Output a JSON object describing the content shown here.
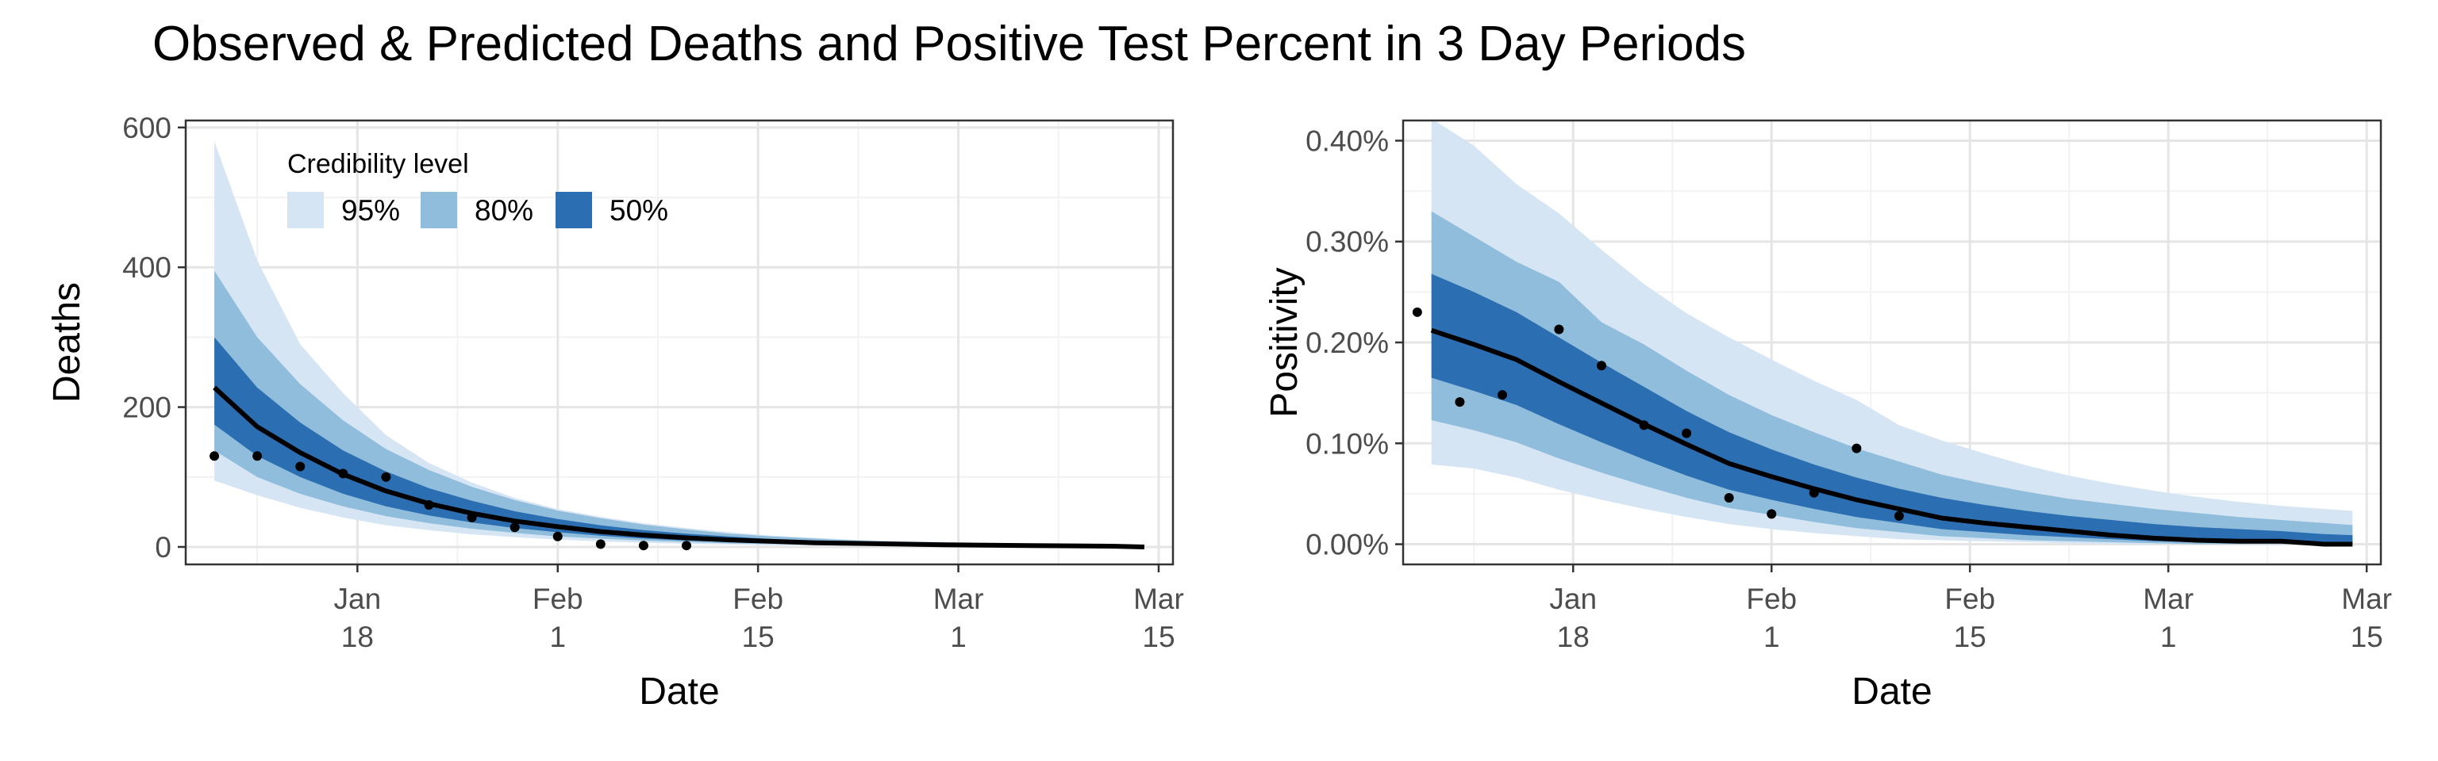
{
  "title": "Observed & Predicted Deaths and Positive Test Percent in 3 Day Periods",
  "legend": {
    "title": "Credibility level",
    "items": [
      {
        "label": "95%",
        "color": "#d6e5f4"
      },
      {
        "label": "80%",
        "color": "#8fbddb"
      },
      {
        "label": "50%",
        "color": "#2b6fb2"
      }
    ]
  },
  "colors": {
    "median_line": "#000000",
    "points": "#000000",
    "grid_major": "#e5e5e5",
    "grid_minor": "#f2f2f2",
    "panel_border": "#333333"
  },
  "x_ticks": [
    {
      "date": "2021-01-18",
      "line1": "Jan",
      "line2": "18"
    },
    {
      "date": "2021-02-01",
      "line1": "Feb",
      "line2": "1"
    },
    {
      "date": "2021-02-15",
      "line1": "Feb",
      "line2": "15"
    },
    {
      "date": "2021-03-01",
      "line1": "Mar",
      "line2": "1"
    },
    {
      "date": "2021-03-15",
      "line1": "Mar",
      "line2": "15"
    }
  ],
  "chart_data": [
    {
      "type": "area",
      "xlabel": "Date",
      "ylabel": "Deaths",
      "xlim": [
        "2021-01-06",
        "2021-03-16"
      ],
      "ylim": [
        -25,
        610
      ],
      "yticks": [
        0,
        200,
        400,
        600
      ],
      "ytick_labels": [
        "0",
        "200",
        "400",
        "600"
      ],
      "grid": true,
      "legend_placement": "top-left",
      "x": [
        "2021-01-08",
        "2021-01-11",
        "2021-01-14",
        "2021-01-17",
        "2021-01-20",
        "2021-01-23",
        "2021-01-26",
        "2021-01-29",
        "2021-02-01",
        "2021-02-04",
        "2021-02-07",
        "2021-02-10",
        "2021-02-13",
        "2021-02-16",
        "2021-02-19",
        "2021-02-22",
        "2021-02-25",
        "2021-02-28",
        "2021-03-03",
        "2021-03-06",
        "2021-03-09",
        "2021-03-12",
        "2021-03-14"
      ],
      "median": [
        228,
        172,
        135,
        104,
        80,
        62,
        48,
        37,
        29,
        22,
        17,
        13,
        10,
        8,
        6,
        5,
        4,
        3,
        2.5,
        2,
        1.5,
        1,
        0
      ],
      "band_50": [
        [
          175,
          130,
          100,
          76,
          58,
          45,
          35,
          27,
          21,
          16,
          12,
          9,
          7,
          5,
          4,
          3,
          2.5,
          2,
          1.5,
          1,
          0.8,
          0.5,
          0
        ],
        [
          300,
          228,
          178,
          138,
          108,
          84,
          66,
          51,
          40,
          31,
          24,
          19,
          15,
          11,
          9,
          7,
          5.5,
          4.5,
          3.5,
          2.8,
          2.2,
          1.8,
          1.5
        ]
      ],
      "band_80": [
        [
          138,
          100,
          76,
          58,
          44,
          34,
          26,
          20,
          15,
          12,
          9,
          7,
          5,
          4,
          3,
          2,
          1.5,
          1.2,
          1,
          0.8,
          0.5,
          0.3,
          0
        ],
        [
          395,
          300,
          233,
          181,
          140,
          110,
          86,
          67,
          52,
          41,
          32,
          25,
          19,
          15,
          12,
          9,
          7,
          6,
          5,
          4,
          3,
          2.5,
          2
        ]
      ],
      "band_95": [
        [
          95,
          74,
          56,
          42,
          31,
          24,
          18,
          14,
          10.5,
          8,
          6,
          4.5,
          3.5,
          2.6,
          2,
          1.5,
          1.1,
          0.8,
          0.6,
          0.4,
          0.3,
          0.2,
          0
        ],
        [
          580,
          410,
          290,
          220,
          160,
          120,
          92,
          70,
          54,
          43,
          34,
          27,
          21,
          16,
          13,
          10,
          8,
          7,
          6,
          5,
          4,
          3,
          2.5
        ]
      ],
      "observed": {
        "x": [
          "2021-01-08",
          "2021-01-11",
          "2021-01-14",
          "2021-01-17",
          "2021-01-20",
          "2021-01-23",
          "2021-01-26",
          "2021-01-29",
          "2021-02-01",
          "2021-02-04",
          "2021-02-07",
          "2021-02-10"
        ],
        "y": [
          130,
          130,
          115,
          105,
          100,
          60,
          42,
          28,
          15,
          4,
          2,
          2
        ]
      }
    },
    {
      "type": "area",
      "xlabel": "Date",
      "ylabel": "Positivity",
      "xlim": [
        "2021-01-06",
        "2021-03-16"
      ],
      "ylim": [
        -0.02,
        0.42
      ],
      "yticks": [
        0,
        0.1,
        0.2,
        0.3,
        0.4
      ],
      "ytick_labels": [
        "0.00%",
        "0.10%",
        "0.20%",
        "0.30%",
        "0.40%"
      ],
      "grid": true,
      "x": [
        "2021-01-08",
        "2021-01-11",
        "2021-01-14",
        "2021-01-17",
        "2021-01-20",
        "2021-01-23",
        "2021-01-26",
        "2021-01-29",
        "2021-02-01",
        "2021-02-04",
        "2021-02-07",
        "2021-02-10",
        "2021-02-13",
        "2021-02-16",
        "2021-02-19",
        "2021-02-22",
        "2021-02-25",
        "2021-02-28",
        "2021-03-03",
        "2021-03-06",
        "2021-03-09",
        "2021-03-12",
        "2021-03-14"
      ],
      "median": [
        0.212,
        0.198,
        0.183,
        0.161,
        0.14,
        0.119,
        0.099,
        0.08,
        0.067,
        0.055,
        0.044,
        0.035,
        0.026,
        0.021,
        0.017,
        0.013,
        0.009,
        0.006,
        0.004,
        0.003,
        0.003,
        0.0,
        0.0
      ],
      "band_50": [
        [
          0.165,
          0.152,
          0.138,
          0.119,
          0.101,
          0.084,
          0.068,
          0.054,
          0.044,
          0.035,
          0.027,
          0.021,
          0.015,
          0.012,
          0.009,
          0.007,
          0.005,
          0.003,
          0.002,
          0.001,
          0.001,
          0.0,
          0.0
        ],
        [
          0.268,
          0.25,
          0.23,
          0.205,
          0.18,
          0.156,
          0.132,
          0.111,
          0.094,
          0.079,
          0.066,
          0.055,
          0.046,
          0.039,
          0.033,
          0.028,
          0.024,
          0.02,
          0.017,
          0.015,
          0.013,
          0.01,
          0.009
        ]
      ],
      "band_80": [
        [
          0.123,
          0.113,
          0.101,
          0.085,
          0.071,
          0.058,
          0.046,
          0.036,
          0.029,
          0.022,
          0.016,
          0.012,
          0.008,
          0.006,
          0.004,
          0.003,
          0.002,
          0.001,
          0.0,
          0.0,
          0.0,
          0.0,
          0.0
        ],
        [
          0.33,
          0.305,
          0.28,
          0.26,
          0.22,
          0.198,
          0.172,
          0.148,
          0.128,
          0.111,
          0.095,
          0.082,
          0.069,
          0.06,
          0.052,
          0.045,
          0.04,
          0.035,
          0.031,
          0.027,
          0.024,
          0.021,
          0.019
        ]
      ],
      "band_95": [
        [
          0.079,
          0.075,
          0.066,
          0.054,
          0.044,
          0.035,
          0.027,
          0.02,
          0.015,
          0.011,
          0.008,
          0.005,
          0.004,
          0.003,
          0.002,
          0.001,
          0.0,
          0.0,
          0.0,
          0.0,
          0.0,
          0.0,
          0.0
        ],
        [
          0.422,
          0.395,
          0.357,
          0.328,
          0.292,
          0.258,
          0.229,
          0.205,
          0.183,
          0.162,
          0.143,
          0.118,
          0.103,
          0.09,
          0.078,
          0.068,
          0.06,
          0.053,
          0.047,
          0.042,
          0.038,
          0.035,
          0.033
        ]
      ],
      "observed": {
        "x": [
          "2021-01-07",
          "2021-01-10",
          "2021-01-13",
          "2021-01-17",
          "2021-01-20",
          "2021-01-23",
          "2021-01-26",
          "2021-01-29",
          "2021-02-01",
          "2021-02-04",
          "2021-02-07",
          "2021-02-10"
        ],
        "y": [
          0.23,
          0.141,
          0.148,
          0.213,
          0.177,
          0.118,
          0.11,
          0.046,
          0.03,
          0.051,
          0.095,
          0.028
        ]
      }
    }
  ]
}
